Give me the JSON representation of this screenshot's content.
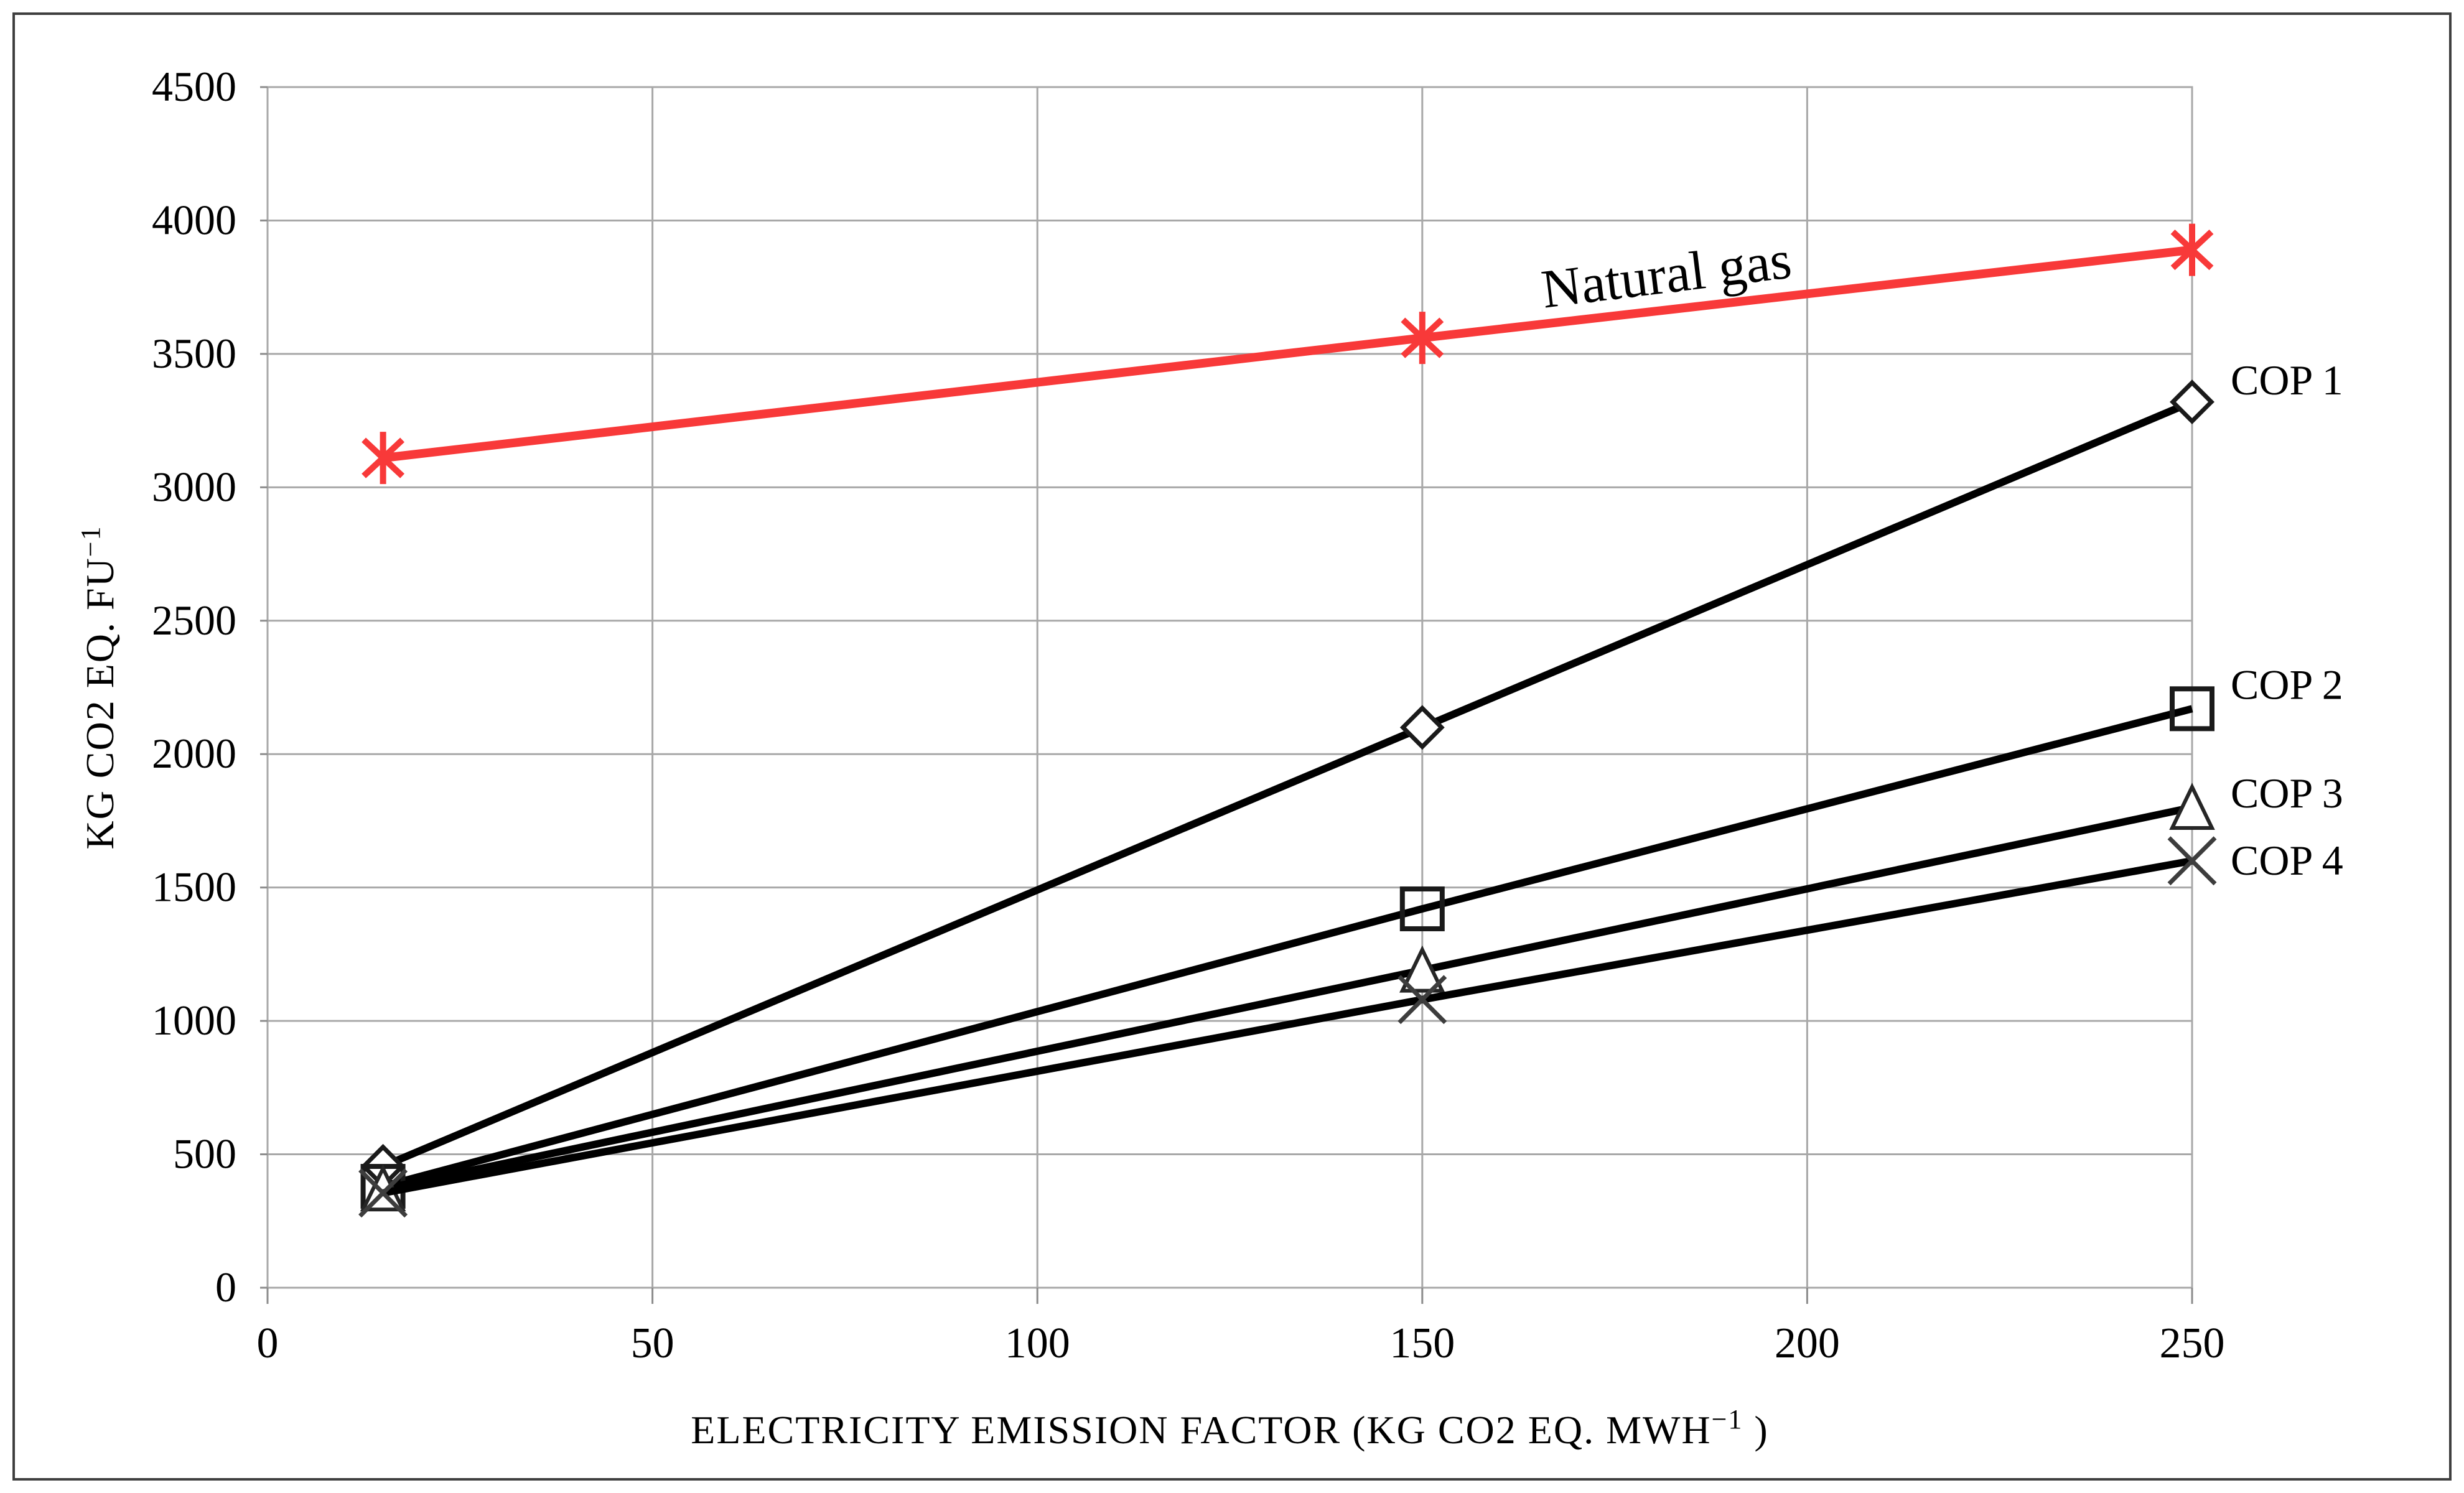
{
  "figure": {
    "background": "#FFFFFF",
    "border_color": "#3F3F3F"
  },
  "chart_data": {
    "type": "line",
    "title": "",
    "xlabel_main": "ELECTRICITY EMISSION FACTOR (KG CO2 EQ. MWH",
    "xlabel_sup": "−1",
    "xlabel_end": " )",
    "ylabel_main": "KG CO2 EQ. FU",
    "ylabel_sup": "−1",
    "xlim": [
      0,
      250
    ],
    "ylim": [
      0,
      4500
    ],
    "xticks": [
      0,
      50,
      100,
      150,
      200,
      250
    ],
    "yticks": [
      0,
      500,
      1000,
      1500,
      2000,
      2500,
      3000,
      3500,
      4000,
      4500
    ],
    "grid": true,
    "gridline_color": "#A8A8A8",
    "tick_color": "#8C8C8C",
    "legend_position": "inline-annotations",
    "x": [
      15,
      150,
      250
    ],
    "series": [
      {
        "name": "Natural gas",
        "marker": "asterisk",
        "color": "#F83939",
        "marker_color": "#F83939",
        "line_width": 14,
        "values": [
          3110,
          3560,
          3890
        ],
        "label_mode": "inline"
      },
      {
        "name": "COP 1",
        "marker": "diamond",
        "color": "#000000",
        "marker_color": "#1A1A1A",
        "line_width": 12,
        "values": [
          455,
          2100,
          3320
        ],
        "label_mode": "end",
        "label_dy": -36
      },
      {
        "name": "COP 2",
        "marker": "square",
        "color": "#000000",
        "marker_color": "#1A1A1A",
        "line_width": 12,
        "values": [
          380,
          1420,
          2170
        ],
        "label_mode": "end",
        "label_dy": -40
      },
      {
        "name": "COP 3",
        "marker": "triangle",
        "color": "#000000",
        "marker_color": "#262626",
        "line_width": 12,
        "values": [
          370,
          1190,
          1800
        ],
        "label_mode": "end",
        "label_dy": -24
      },
      {
        "name": "COP 4",
        "marker": "x",
        "color": "#000000",
        "marker_color": "#3D3D3D",
        "line_width": 12,
        "values": [
          355,
          1080,
          1600
        ],
        "label_mode": "end",
        "label_dy": -2
      }
    ],
    "annotation": {
      "text": "Natural gas",
      "x": 182,
      "y": 3800,
      "rotation": -7
    }
  }
}
